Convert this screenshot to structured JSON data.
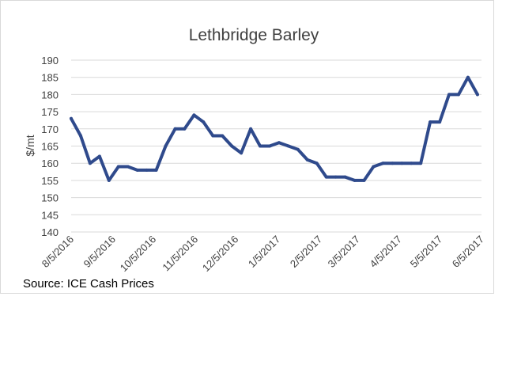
{
  "chart_data": {
    "type": "line",
    "title": "Lethbridge Barley",
    "ylabel": "$/mt",
    "xlabel": "",
    "ylim": [
      140,
      190
    ],
    "yticks": [
      140,
      145,
      150,
      155,
      160,
      165,
      170,
      175,
      180,
      185,
      190
    ],
    "grid": "horizontal",
    "x_ticks": [
      "8/5/2016",
      "9/5/2016",
      "10/5/2016",
      "11/5/2016",
      "12/5/2016",
      "1/5/2017",
      "2/5/2017",
      "3/5/2017",
      "4/5/2017",
      "5/5/2017",
      "6/5/2017"
    ],
    "series": [
      {
        "color": "#2f4a8c",
        "x": [
          "8/5/2016",
          "8/12/2016",
          "8/19/2016",
          "8/26/2016",
          "9/2/2016",
          "9/9/2016",
          "9/16/2016",
          "9/23/2016",
          "9/30/2016",
          "10/7/2016",
          "10/14/2016",
          "10/21/2016",
          "10/28/2016",
          "11/4/2016",
          "11/11/2016",
          "11/18/2016",
          "11/25/2016",
          "12/2/2016",
          "12/9/2016",
          "12/16/2016",
          "12/23/2016",
          "12/30/2016",
          "1/6/2017",
          "1/13/2017",
          "1/20/2017",
          "1/27/2017",
          "2/3/2017",
          "2/10/2017",
          "2/17/2017",
          "2/24/2017",
          "3/3/2017",
          "3/10/2017",
          "3/17/2017",
          "3/24/2017",
          "3/31/2017",
          "4/7/2017",
          "4/14/2017",
          "4/21/2017",
          "4/28/2017",
          "5/5/2017",
          "5/12/2017",
          "5/19/2017",
          "5/26/2017",
          "6/2/2017"
        ],
        "values": [
          173,
          168,
          160,
          162,
          155,
          159,
          159,
          158,
          158,
          158,
          165,
          170,
          170,
          174,
          172,
          168,
          168,
          165,
          163,
          170,
          165,
          165,
          166,
          165,
          164,
          161,
          160,
          156,
          156,
          156,
          155,
          155,
          159,
          160,
          160,
          160,
          160,
          160,
          172,
          172,
          180,
          180,
          185,
          180
        ]
      }
    ]
  },
  "source_text": "Source: ICE Cash Prices"
}
